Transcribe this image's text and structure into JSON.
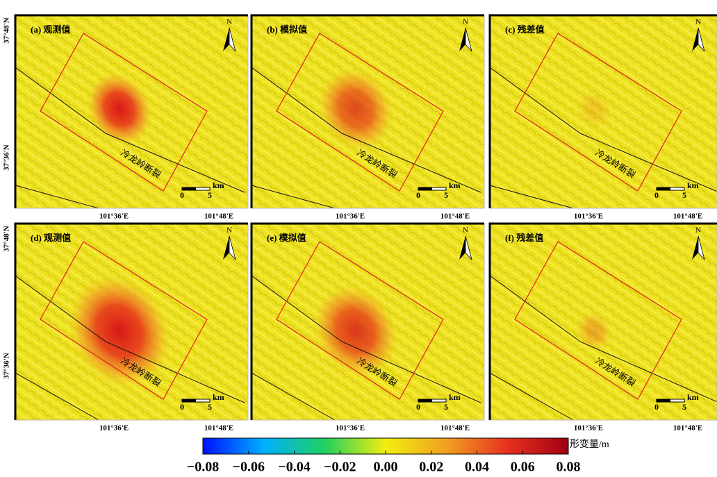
{
  "panels": [
    {
      "label": "(a) 观测值",
      "fault": "冷龙岭断裂",
      "lat_labels": [
        "37°48'N",
        "37°36'N"
      ],
      "lon_labels": [
        "101°36'E",
        "101°48'E"
      ],
      "north": "N",
      "scale": {
        "unit": "km",
        "ticks": [
          0,
          5
        ]
      }
    },
    {
      "label": "(b) 模拟值",
      "fault": "冷龙岭断裂",
      "lon_labels": [
        "101°36'E",
        "101°48'E"
      ],
      "north": "N",
      "scale": {
        "unit": "km",
        "ticks": [
          0,
          5
        ]
      }
    },
    {
      "label": "(c) 残差值",
      "fault": "冷龙岭断裂",
      "lon_labels": [
        "101°36'E",
        "101°48'E"
      ],
      "north": "N",
      "scale": {
        "unit": "km",
        "ticks": [
          0,
          5
        ]
      }
    },
    {
      "label": "(d) 观测值",
      "fault": "冷龙岭断裂",
      "lat_labels": [
        "37°48'N",
        "37°36'N"
      ],
      "lon_labels": [
        "101°36'E",
        "101°48'E"
      ],
      "north": "N",
      "scale": {
        "unit": "km",
        "ticks": [
          0,
          5
        ]
      }
    },
    {
      "label": "(e) 模拟值",
      "fault": "冷龙岭断裂",
      "lon_labels": [
        "101°36'E",
        "101°48'E"
      ],
      "north": "N",
      "scale": {
        "unit": "km",
        "ticks": [
          0,
          5
        ]
      }
    },
    {
      "label": "(f) 残差值",
      "fault": "冷龙岭断裂",
      "lon_labels": [
        "101°36'E",
        "101°48'E"
      ],
      "north": "N",
      "scale": {
        "unit": "km",
        "ticks": [
          0,
          5
        ]
      }
    }
  ],
  "colorbar": {
    "title": "形变量/m",
    "lim": [
      -0.08,
      0.08
    ],
    "colors": [
      "#0010ff",
      "#00b0ff",
      "#20d060",
      "#f2ee10",
      "#f0a020",
      "#e83020",
      "#a00010"
    ],
    "ticks": [
      {
        "value": -0.08,
        "label": "−0.08"
      },
      {
        "value": -0.06,
        "label": "−0.06"
      },
      {
        "value": -0.04,
        "label": "−0.04"
      },
      {
        "value": -0.02,
        "label": "−0.02"
      },
      {
        "value": 0,
        "label": "0.00"
      },
      {
        "value": 0.02,
        "label": "0.02"
      },
      {
        "value": 0.04,
        "label": "0.04"
      },
      {
        "value": 0.06,
        "label": "0.06"
      },
      {
        "value": 0.08,
        "label": "0.08"
      }
    ]
  }
}
